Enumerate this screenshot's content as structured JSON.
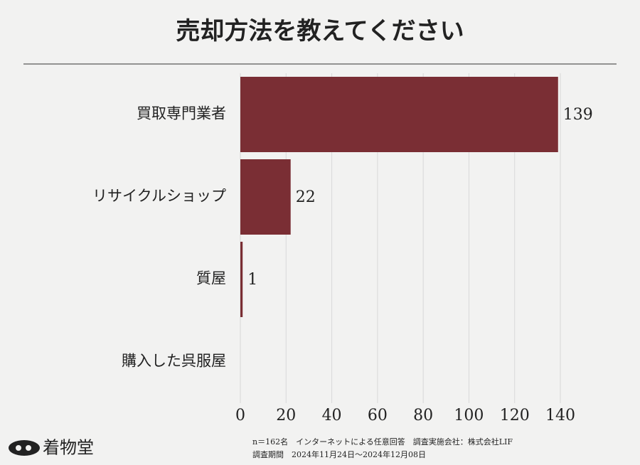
{
  "chart_data": {
    "type": "barh",
    "title": "売却方法を教えてください",
    "categories": [
      "買取専門業者",
      "リサイクルショップ",
      "質屋",
      "購入した呉服屋"
    ],
    "values": [
      139,
      22,
      1,
      0
    ],
    "value_labels": [
      "139",
      "22",
      "1",
      null
    ],
    "color": "#7a2e34",
    "xlim": [
      0,
      140
    ],
    "xticks": [
      0,
      20,
      40,
      60,
      80,
      100,
      120,
      140
    ],
    "grid": true,
    "footnote": [
      "n＝162名　インターネットによる任意回答　調査実施会社：株式会社LIF",
      "調査期間　2024年11月24日〜2024年12月08日"
    ],
    "brand": "着物堂"
  }
}
